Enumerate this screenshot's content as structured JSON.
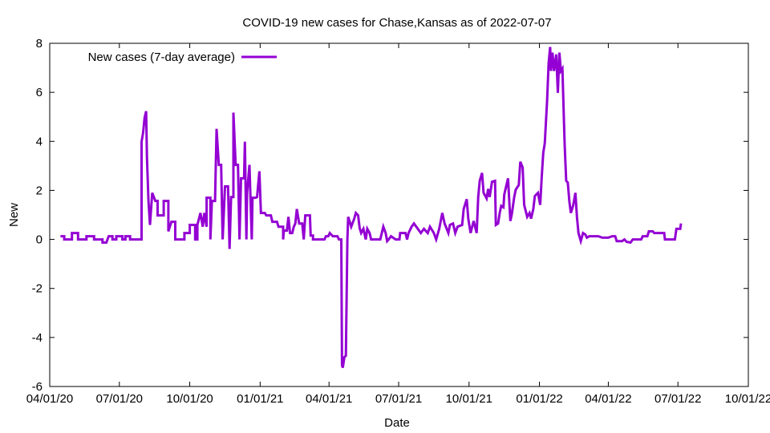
{
  "chart_data": {
    "type": "line",
    "title": "COVID-19 new cases for Chase,Kansas as of 2022-07-07",
    "xlabel": "Date",
    "ylabel": "New",
    "x_units": "days since 04/01/20",
    "xlim": [
      0,
      913
    ],
    "ylim": [
      -6,
      8
    ],
    "grid": false,
    "legend_position": "top-left",
    "x_ticks": [
      {
        "day": 0,
        "label": "04/01/20"
      },
      {
        "day": 91,
        "label": "07/01/20"
      },
      {
        "day": 183,
        "label": "10/01/20"
      },
      {
        "day": 275,
        "label": "01/01/21"
      },
      {
        "day": 365,
        "label": "04/01/21"
      },
      {
        "day": 456,
        "label": "07/01/21"
      },
      {
        "day": 548,
        "label": "10/01/21"
      },
      {
        "day": 640,
        "label": "01/01/22"
      },
      {
        "day": 730,
        "label": "04/01/22"
      },
      {
        "day": 821,
        "label": "07/01/22"
      },
      {
        "day": 913,
        "label": "10/01/22"
      }
    ],
    "y_ticks": [
      -6,
      -4,
      -2,
      0,
      2,
      4,
      6,
      8
    ],
    "series": [
      {
        "name": "New cases (7-day average)",
        "color": "#9400d3",
        "points": [
          [
            14,
            0.13
          ],
          [
            19,
            0.13
          ],
          [
            19,
            0
          ],
          [
            29,
            0
          ],
          [
            29,
            0.26
          ],
          [
            37,
            0.26
          ],
          [
            37,
            0
          ],
          [
            48,
            0
          ],
          [
            48,
            0.13
          ],
          [
            58,
            0.13
          ],
          [
            58,
            0
          ],
          [
            69,
            0
          ],
          [
            69,
            -0.13
          ],
          [
            74,
            -0.13
          ],
          [
            77,
            0.13
          ],
          [
            82,
            0.13
          ],
          [
            82,
            0
          ],
          [
            87,
            0
          ],
          [
            87,
            0.13
          ],
          [
            95,
            0.13
          ],
          [
            95,
            0
          ],
          [
            99,
            0
          ],
          [
            99,
            0.13
          ],
          [
            105,
            0.13
          ],
          [
            105,
            0
          ],
          [
            120,
            0
          ],
          [
            120,
            3.99
          ],
          [
            122,
            4.35
          ],
          [
            124,
            4.97
          ],
          [
            126,
            5.23
          ],
          [
            127,
            3.37
          ],
          [
            129,
            1.57
          ],
          [
            131,
            0.59
          ],
          [
            134,
            1.9
          ],
          [
            138,
            1.57
          ],
          [
            141,
            1.57
          ],
          [
            141,
            0.98
          ],
          [
            149,
            0.98
          ],
          [
            149,
            1.57
          ],
          [
            155,
            1.57
          ],
          [
            155,
            0.33
          ],
          [
            159,
            0.72
          ],
          [
            164,
            0.72
          ],
          [
            164,
            0
          ],
          [
            176,
            0
          ],
          [
            176,
            0.26
          ],
          [
            183,
            0.26
          ],
          [
            183,
            0.59
          ],
          [
            190,
            0.59
          ],
          [
            190,
            0
          ],
          [
            193,
            0
          ],
          [
            193,
            0.59
          ],
          [
            197,
            1.08
          ],
          [
            200,
            0.52
          ],
          [
            202,
            1.08
          ],
          [
            205,
            0.52
          ],
          [
            205,
            1.7
          ],
          [
            210,
            1.7
          ],
          [
            210,
            0
          ],
          [
            212,
            1.57
          ],
          [
            216,
            1.57
          ],
          [
            218,
            4.51
          ],
          [
            221,
            3.04
          ],
          [
            224,
            3.04
          ],
          [
            226,
            0
          ],
          [
            229,
            2.16
          ],
          [
            233,
            2.16
          ],
          [
            235,
            -0.39
          ],
          [
            237,
            1.73
          ],
          [
            240,
            1.73
          ],
          [
            240,
            5.17
          ],
          [
            243,
            3.04
          ],
          [
            246,
            3.04
          ],
          [
            248,
            0
          ],
          [
            250,
            2.49
          ],
          [
            254,
            2.49
          ],
          [
            255,
            3.99
          ],
          [
            257,
            0
          ],
          [
            258,
            1.9
          ],
          [
            261,
            3.04
          ],
          [
            264,
            0
          ],
          [
            265,
            1.7
          ],
          [
            269,
            1.7
          ],
          [
            271,
            1.73
          ],
          [
            274,
            2.78
          ],
          [
            276,
            1.08
          ],
          [
            281,
            1.08
          ],
          [
            283,
            0.98
          ],
          [
            289,
            0.98
          ],
          [
            291,
            0.72
          ],
          [
            297,
            0.72
          ],
          [
            299,
            0.52
          ],
          [
            305,
            0.52
          ],
          [
            305,
            0
          ],
          [
            306,
            0.36
          ],
          [
            310,
            0.36
          ],
          [
            312,
            0.92
          ],
          [
            314,
            0.26
          ],
          [
            317,
            0.26
          ],
          [
            319,
            0.52
          ],
          [
            321,
            0.65
          ],
          [
            323,
            1.24
          ],
          [
            326,
            0.65
          ],
          [
            330,
            0.65
          ],
          [
            332,
            0
          ],
          [
            334,
            0.98
          ],
          [
            340,
            0.98
          ],
          [
            341,
            0.16
          ],
          [
            344,
            0.16
          ],
          [
            344,
            0
          ],
          [
            359,
            0
          ],
          [
            361,
            0.13
          ],
          [
            364,
            0.13
          ],
          [
            366,
            0.26
          ],
          [
            370,
            0.13
          ],
          [
            376,
            0.13
          ],
          [
            378,
            0
          ],
          [
            381,
            0
          ],
          [
            382,
            -5.13
          ],
          [
            383,
            -5.23
          ],
          [
            385,
            -4.81
          ],
          [
            387,
            -4.74
          ],
          [
            389,
            0
          ],
          [
            390,
            0.92
          ],
          [
            394,
            0.52
          ],
          [
            398,
            0.85
          ],
          [
            400,
            1.08
          ],
          [
            403,
            0.98
          ],
          [
            405,
            0.46
          ],
          [
            407,
            0.26
          ],
          [
            410,
            0.43
          ],
          [
            413,
            0
          ],
          [
            415,
            0.43
          ],
          [
            418,
            0.26
          ],
          [
            420,
            0
          ],
          [
            432,
            0
          ],
          [
            434,
            0.26
          ],
          [
            436,
            0.52
          ],
          [
            439,
            0.26
          ],
          [
            441,
            -0.07
          ],
          [
            443,
            0
          ],
          [
            446,
            0.13
          ],
          [
            452,
            0
          ],
          [
            457,
            0
          ],
          [
            458,
            0.26
          ],
          [
            465,
            0.26
          ],
          [
            467,
            0
          ],
          [
            469,
            0.26
          ],
          [
            473,
            0.52
          ],
          [
            476,
            0.65
          ],
          [
            481,
            0.43
          ],
          [
            485,
            0.26
          ],
          [
            489,
            0.43
          ],
          [
            494,
            0.26
          ],
          [
            497,
            0.52
          ],
          [
            502,
            0.26
          ],
          [
            505,
            0
          ],
          [
            509,
            0.43
          ],
          [
            513,
            1.08
          ],
          [
            516,
            0.65
          ],
          [
            521,
            0.26
          ],
          [
            523,
            0.59
          ],
          [
            527,
            0.65
          ],
          [
            530,
            0.26
          ],
          [
            533,
            0.52
          ],
          [
            539,
            0.59
          ],
          [
            541,
            1.24
          ],
          [
            545,
            1.64
          ],
          [
            547,
            0.85
          ],
          [
            550,
            0.26
          ],
          [
            554,
            0.75
          ],
          [
            558,
            0.26
          ],
          [
            560,
            1.73
          ],
          [
            562,
            2.39
          ],
          [
            565,
            2.71
          ],
          [
            567,
            1.9
          ],
          [
            571,
            1.67
          ],
          [
            573,
            2.06
          ],
          [
            575,
            1.73
          ],
          [
            578,
            2.35
          ],
          [
            582,
            2.39
          ],
          [
            583,
            0.59
          ],
          [
            586,
            0.65
          ],
          [
            588,
            1.08
          ],
          [
            590,
            1.37
          ],
          [
            593,
            1.31
          ],
          [
            594,
            1.83
          ],
          [
            599,
            2.49
          ],
          [
            602,
            0.75
          ],
          [
            604,
            1.05
          ],
          [
            607,
            1.73
          ],
          [
            609,
            2.03
          ],
          [
            613,
            2.22
          ],
          [
            615,
            3.17
          ],
          [
            618,
            2.94
          ],
          [
            620,
            1.41
          ],
          [
            624,
            0.92
          ],
          [
            627,
            1.08
          ],
          [
            629,
            0.85
          ],
          [
            632,
            1.24
          ],
          [
            634,
            1.77
          ],
          [
            638,
            1.9
          ],
          [
            641,
            1.41
          ],
          [
            643,
            2.55
          ],
          [
            645,
            3.53
          ],
          [
            647,
            3.92
          ],
          [
            650,
            5.66
          ],
          [
            652,
            7.19
          ],
          [
            654,
            7.85
          ],
          [
            655,
            6.87
          ],
          [
            657,
            7.62
          ],
          [
            659,
            6.87
          ],
          [
            662,
            7.55
          ],
          [
            664,
            5.98
          ],
          [
            666,
            7.62
          ],
          [
            668,
            6.87
          ],
          [
            670,
            6.97
          ],
          [
            672,
            4.84
          ],
          [
            673,
            3.86
          ],
          [
            675,
            2.39
          ],
          [
            677,
            2.32
          ],
          [
            679,
            1.57
          ],
          [
            681,
            1.08
          ],
          [
            684,
            1.37
          ],
          [
            687,
            1.9
          ],
          [
            689,
            0.92
          ],
          [
            691,
            0.26
          ],
          [
            694,
            -0.07
          ],
          [
            697,
            0.26
          ],
          [
            700,
            0.2
          ],
          [
            702,
            0.07
          ],
          [
            705,
            0.13
          ],
          [
            717,
            0.13
          ],
          [
            722,
            0.07
          ],
          [
            730,
            0.07
          ],
          [
            735,
            0.13
          ],
          [
            739,
            0.13
          ],
          [
            741,
            -0.07
          ],
          [
            748,
            -0.07
          ],
          [
            751,
            0
          ],
          [
            754,
            -0.1
          ],
          [
            759,
            -0.13
          ],
          [
            762,
            0
          ],
          [
            773,
            0
          ],
          [
            775,
            0.13
          ],
          [
            781,
            0.13
          ],
          [
            783,
            0.33
          ],
          [
            788,
            0.33
          ],
          [
            790,
            0.26
          ],
          [
            803,
            0.26
          ],
          [
            804,
            0
          ],
          [
            817,
            0
          ],
          [
            819,
            0.43
          ],
          [
            824,
            0.43
          ],
          [
            825,
            0.65
          ]
        ]
      }
    ]
  }
}
